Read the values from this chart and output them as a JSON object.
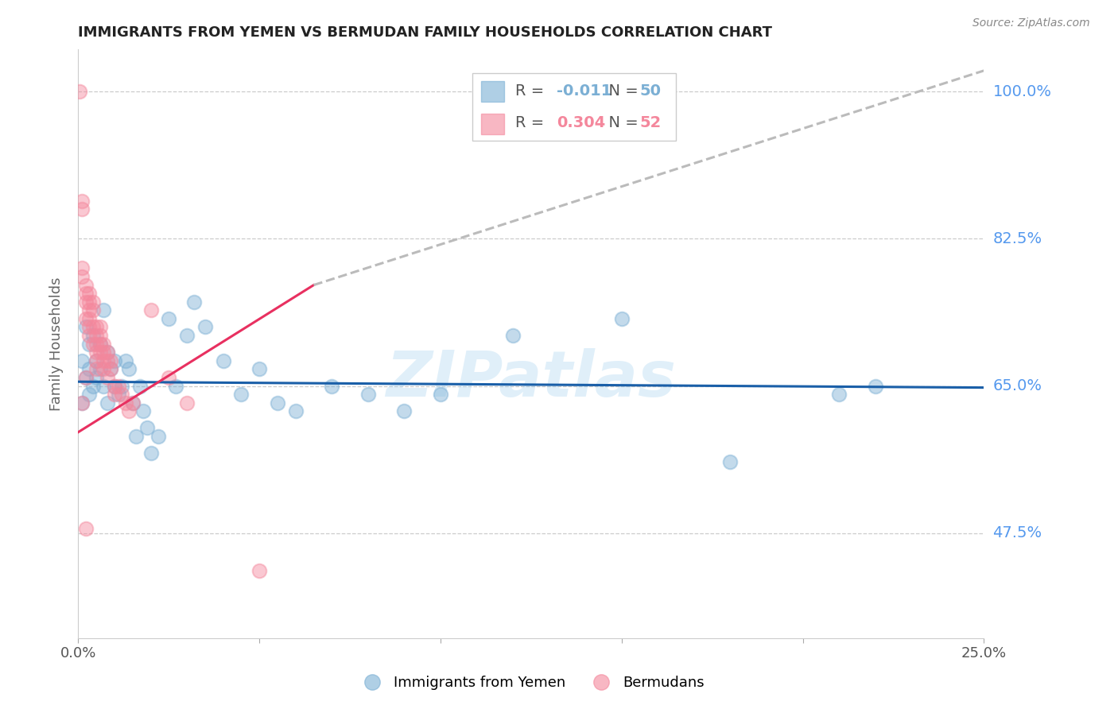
{
  "title": "IMMIGRANTS FROM YEMEN VS BERMUDAN FAMILY HOUSEHOLDS CORRELATION CHART",
  "source": "Source: ZipAtlas.com",
  "ylabel": "Family Households",
  "watermark": "ZIPatlas",
  "legend_blue_r": "-0.011",
  "legend_blue_n": "50",
  "legend_pink_r": "0.304",
  "legend_pink_n": "52",
  "blue_color": "#7BAFD4",
  "pink_color": "#F4879C",
  "trend_blue_color": "#1A5FA8",
  "trend_pink_color": "#E83060",
  "right_label_color": "#5599EE",
  "xlim": [
    0.0,
    0.25
  ],
  "ylim": [
    0.35,
    1.05
  ],
  "yticks": [
    0.475,
    0.65,
    0.825,
    1.0
  ],
  "ytick_labels": [
    "47.5%",
    "65.0%",
    "82.5%",
    "100.0%"
  ],
  "xticks": [
    0.0,
    0.05,
    0.1,
    0.15,
    0.2,
    0.25
  ],
  "xtick_labels": [
    "0.0%",
    "",
    "",
    "",
    "",
    "25.0%"
  ],
  "blue_trend_x0": 0.0,
  "blue_trend_y0": 0.655,
  "blue_trend_x1": 0.25,
  "blue_trend_y1": 0.648,
  "pink_trend_solid_x0": 0.0,
  "pink_trend_solid_y0": 0.595,
  "pink_trend_solid_x1": 0.065,
  "pink_trend_solid_y1": 0.77,
  "pink_trend_dash_x0": 0.065,
  "pink_trend_dash_y0": 0.77,
  "pink_trend_dash_x1": 0.25,
  "pink_trend_dash_y1": 1.025,
  "blue_x": [
    0.001,
    0.001,
    0.002,
    0.002,
    0.003,
    0.003,
    0.003,
    0.004,
    0.004,
    0.005,
    0.005,
    0.006,
    0.006,
    0.007,
    0.007,
    0.008,
    0.008,
    0.009,
    0.01,
    0.01,
    0.011,
    0.012,
    0.013,
    0.014,
    0.015,
    0.016,
    0.017,
    0.018,
    0.019,
    0.02,
    0.022,
    0.025,
    0.027,
    0.03,
    0.032,
    0.035,
    0.04,
    0.045,
    0.05,
    0.055,
    0.06,
    0.07,
    0.08,
    0.09,
    0.1,
    0.12,
    0.15,
    0.18,
    0.21,
    0.22
  ],
  "blue_y": [
    0.68,
    0.63,
    0.66,
    0.72,
    0.64,
    0.67,
    0.7,
    0.65,
    0.71,
    0.66,
    0.68,
    0.67,
    0.7,
    0.74,
    0.65,
    0.63,
    0.69,
    0.67,
    0.65,
    0.68,
    0.64,
    0.65,
    0.68,
    0.67,
    0.63,
    0.59,
    0.65,
    0.62,
    0.6,
    0.57,
    0.59,
    0.73,
    0.65,
    0.71,
    0.75,
    0.72,
    0.68,
    0.64,
    0.67,
    0.63,
    0.62,
    0.65,
    0.64,
    0.62,
    0.64,
    0.71,
    0.73,
    0.56,
    0.64,
    0.65
  ],
  "pink_x": [
    0.0003,
    0.001,
    0.001,
    0.001,
    0.002,
    0.002,
    0.002,
    0.002,
    0.003,
    0.003,
    0.003,
    0.003,
    0.003,
    0.004,
    0.004,
    0.004,
    0.004,
    0.005,
    0.005,
    0.005,
    0.005,
    0.005,
    0.005,
    0.006,
    0.006,
    0.006,
    0.006,
    0.007,
    0.007,
    0.007,
    0.007,
    0.008,
    0.008,
    0.008,
    0.009,
    0.009,
    0.01,
    0.01,
    0.011,
    0.012,
    0.013,
    0.014,
    0.015,
    0.02,
    0.025,
    0.03,
    0.001,
    0.001,
    0.002,
    0.002,
    0.003,
    0.05
  ],
  "pink_y": [
    1.0,
    0.87,
    0.86,
    0.63,
    0.77,
    0.76,
    0.75,
    0.73,
    0.75,
    0.74,
    0.73,
    0.72,
    0.71,
    0.75,
    0.74,
    0.72,
    0.7,
    0.72,
    0.71,
    0.7,
    0.69,
    0.68,
    0.67,
    0.72,
    0.71,
    0.7,
    0.69,
    0.7,
    0.69,
    0.68,
    0.67,
    0.69,
    0.68,
    0.66,
    0.68,
    0.67,
    0.65,
    0.64,
    0.65,
    0.64,
    0.63,
    0.62,
    0.63,
    0.74,
    0.66,
    0.63,
    0.79,
    0.78,
    0.66,
    0.48,
    0.76,
    0.43
  ]
}
